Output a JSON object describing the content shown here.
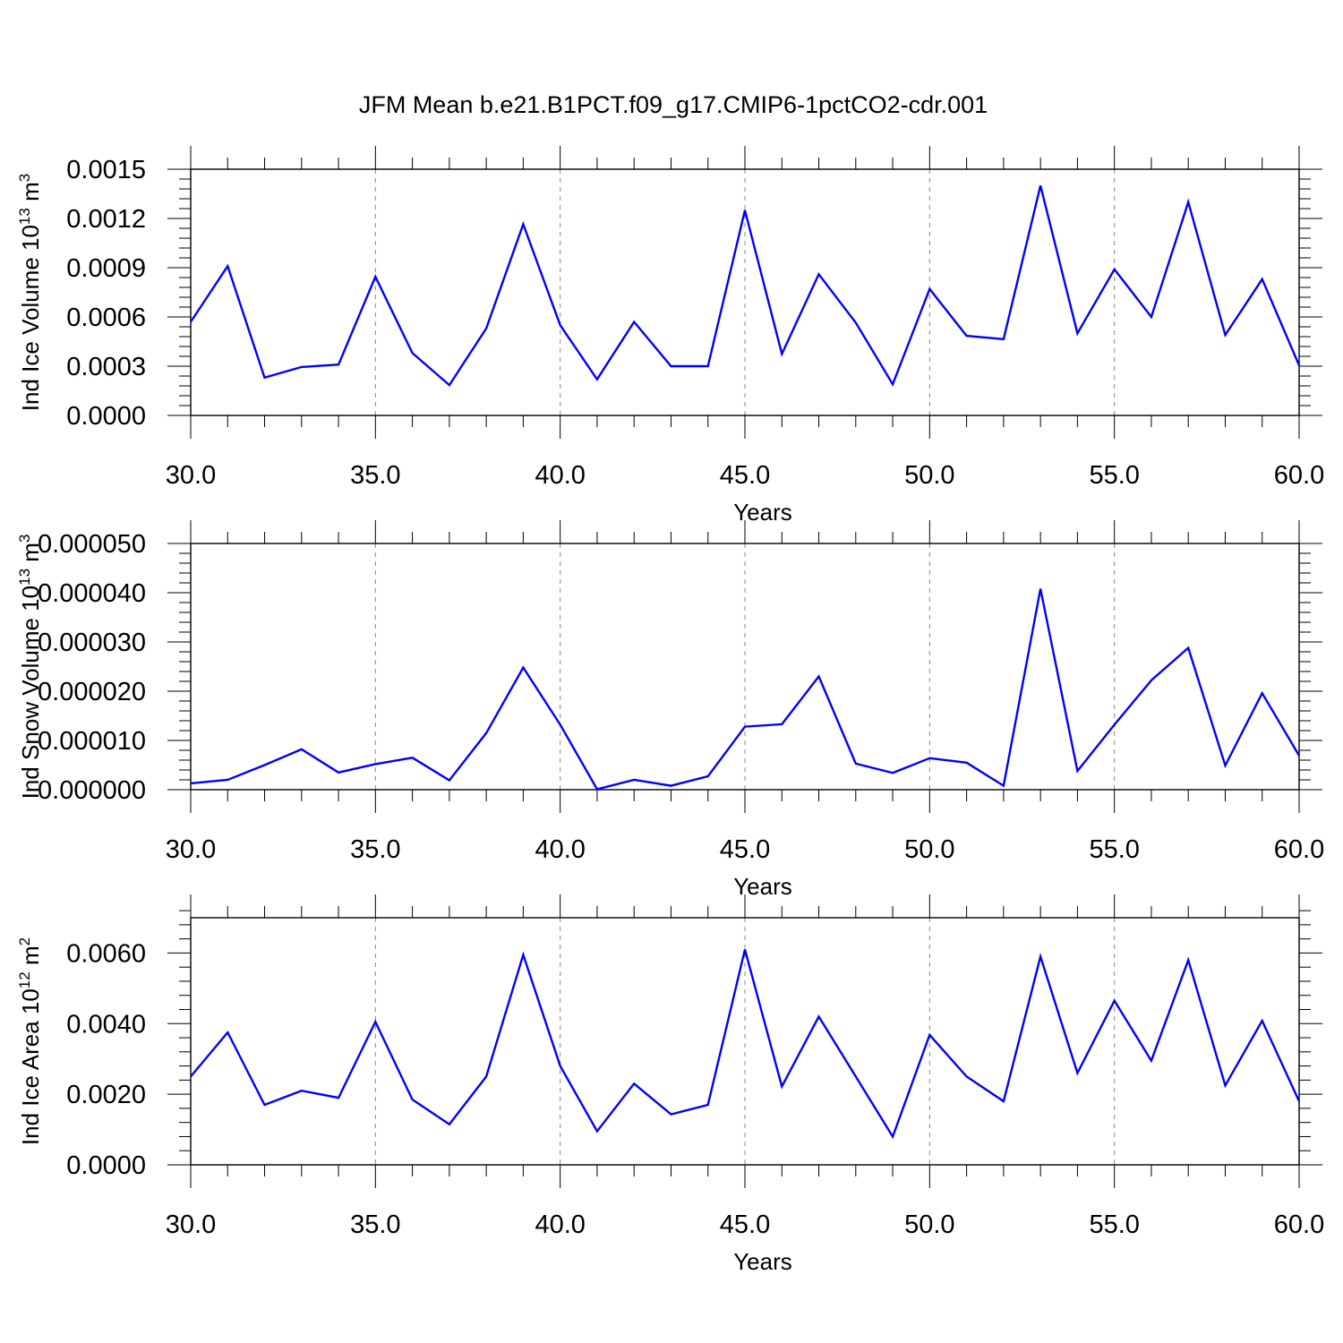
{
  "title": "JFM Mean b.e21.B1PCT.f09_g17.CMIP6-1pctCO2-cdr.001",
  "line_color": "#0000ff",
  "chart_data": [
    {
      "type": "line",
      "xlabel": "Years",
      "ylabel": "Ind Ice Volume 10",
      "ylabel_exp": "13",
      "ylabel_unit": " m",
      "ylabel_unit_exp": "3",
      "xlim": [
        30,
        60
      ],
      "ylim": [
        0,
        0.0015
      ],
      "x_ticks": [
        30,
        35,
        40,
        45,
        50,
        55,
        60
      ],
      "x_tick_labels": [
        "30.0",
        "35.0",
        "40.0",
        "45.0",
        "50.0",
        "55.0",
        "60.0"
      ],
      "y_ticks": [
        0,
        0.0003,
        0.0006,
        0.0009,
        0.0012,
        0.0015
      ],
      "y_tick_labels": [
        "0.0000",
        "0.0003",
        "0.0006",
        "0.0009",
        "0.0012",
        "0.0015"
      ],
      "x": [
        30,
        31,
        32,
        33,
        34,
        35,
        36,
        37,
        38,
        39,
        40,
        41,
        42,
        43,
        44,
        45,
        46,
        47,
        48,
        49,
        50,
        51,
        52,
        53,
        54,
        55,
        56,
        57,
        58,
        59,
        60
      ],
      "values": [
        0.00057,
        0.00091,
        0.00023,
        0.000295,
        0.00031,
        0.000845,
        0.00038,
        0.000185,
        0.00053,
        0.001165,
        0.00055,
        0.00022,
        0.00057,
        0.0003,
        0.0003,
        0.00125,
        0.000375,
        0.00086,
        0.000565,
        0.00019,
        0.00077,
        0.000485,
        0.000465,
        0.0014,
        0.0005,
        0.00089,
        0.0006,
        0.0013,
        0.00049,
        0.00083,
        0.000305
      ],
      "grid": "vertical dashed"
    },
    {
      "type": "line",
      "xlabel": "Years",
      "ylabel": "Ind Snow Volume 10",
      "ylabel_exp": "13",
      "ylabel_unit": " m",
      "ylabel_unit_exp": "3",
      "xlim": [
        30,
        60
      ],
      "ylim": [
        0,
        5e-05
      ],
      "x_ticks": [
        30,
        35,
        40,
        45,
        50,
        55,
        60
      ],
      "x_tick_labels": [
        "30.0",
        "35.0",
        "40.0",
        "45.0",
        "50.0",
        "55.0",
        "60.0"
      ],
      "y_ticks": [
        0,
        1e-05,
        2e-05,
        3e-05,
        4e-05,
        5e-05
      ],
      "y_tick_labels": [
        "0.000000",
        "0.000010",
        "0.000020",
        "0.000030",
        "0.000040",
        "0.000050"
      ],
      "x": [
        30,
        31,
        32,
        33,
        34,
        35,
        36,
        37,
        38,
        39,
        40,
        41,
        42,
        43,
        44,
        45,
        46,
        47,
        48,
        49,
        50,
        51,
        52,
        53,
        54,
        55,
        56,
        57,
        58,
        59,
        60
      ],
      "values": [
        1.3e-06,
        2e-06,
        5e-06,
        8.2e-06,
        3.5e-06,
        5.2e-06,
        6.5e-06,
        1.9e-06,
        1.15e-05,
        2.48e-05,
        1.32e-05,
        1e-07,
        2e-06,
        8e-07,
        2.7e-06,
        1.28e-05,
        1.33e-05,
        2.3e-05,
        5.3e-06,
        3.4e-06,
        6.4e-06,
        5.5e-06,
        8e-07,
        4.08e-05,
        3.8e-06,
        1.32e-05,
        2.22e-05,
        2.88e-05,
        4.9e-06,
        1.96e-05,
        6.9e-06
      ],
      "grid": "vertical dashed"
    },
    {
      "type": "line",
      "xlabel": "Years",
      "ylabel": "Ind Ice Area 10",
      "ylabel_exp": "12",
      "ylabel_unit": " m",
      "ylabel_unit_exp": "2",
      "xlim": [
        30,
        60
      ],
      "ylim": [
        0,
        0.007
      ],
      "x_ticks": [
        30,
        35,
        40,
        45,
        50,
        55,
        60
      ],
      "x_tick_labels": [
        "30.0",
        "35.0",
        "40.0",
        "45.0",
        "50.0",
        "55.0",
        "60.0"
      ],
      "y_ticks": [
        0,
        0.002,
        0.004,
        0.006
      ],
      "y_tick_labels": [
        "0.0000",
        "0.0020",
        "0.0040",
        "0.0060"
      ],
      "x": [
        30,
        31,
        32,
        33,
        34,
        35,
        36,
        37,
        38,
        39,
        40,
        41,
        42,
        43,
        44,
        45,
        46,
        47,
        48,
        49,
        50,
        51,
        52,
        53,
        54,
        55,
        56,
        57,
        58,
        59,
        60
      ],
      "values": [
        0.0025,
        0.00375,
        0.0017,
        0.0021,
        0.0019,
        0.00405,
        0.00185,
        0.00115,
        0.0025,
        0.00595,
        0.0028,
        0.00095,
        0.0023,
        0.00143,
        0.0017,
        0.0061,
        0.00222,
        0.0042,
        0.0025,
        0.0008,
        0.00368,
        0.0025,
        0.0018,
        0.0059,
        0.0026,
        0.00465,
        0.00295,
        0.0058,
        0.00225,
        0.00408,
        0.0018
      ],
      "grid": "vertical dashed"
    }
  ]
}
